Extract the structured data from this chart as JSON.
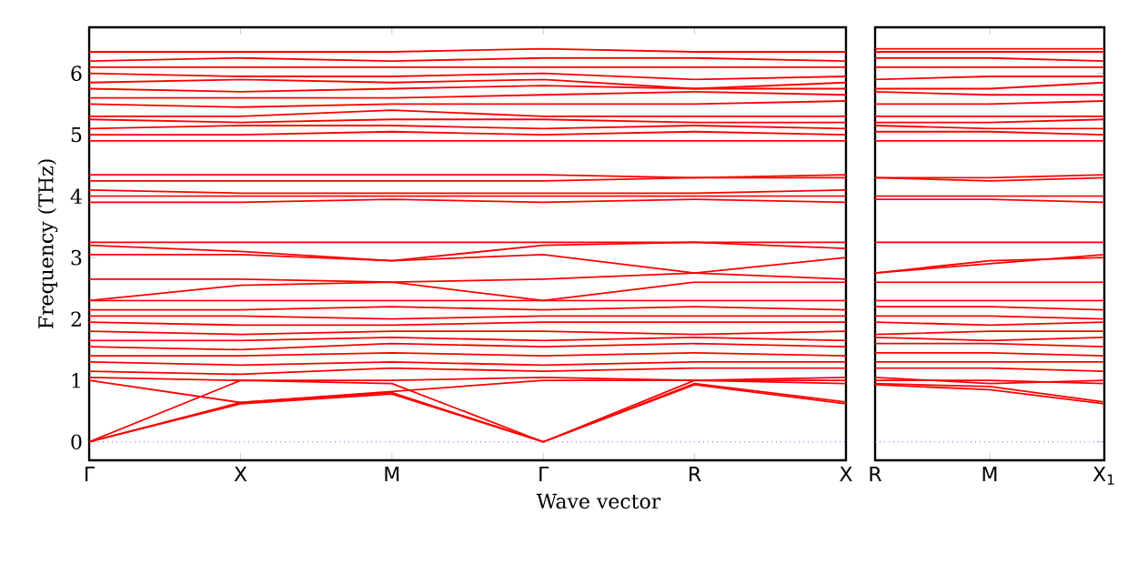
{
  "chart_data": [
    {
      "type": "line",
      "xlabel": "Wave vector",
      "ylabel": "Frequency (THz)",
      "color": "#ff0000",
      "categories": [
        "Γ",
        "X",
        "M",
        "Γ",
        "R",
        "X"
      ],
      "ylim": [
        -0.3,
        6.75
      ],
      "yticks": [
        0,
        1,
        2,
        3,
        4,
        5,
        6
      ],
      "ref_lines": [
        {
          "axis": "y",
          "value": 0,
          "color": "#6666ff",
          "line_style": "dotted"
        }
      ],
      "series": [
        {
          "values": [
            0,
            0.62,
            0.78,
            0,
            0.93,
            0.62
          ]
        },
        {
          "values": [
            0,
            0.64,
            0.8,
            0,
            0.95,
            0.65
          ]
        },
        {
          "values": [
            0,
            1.0,
            0.95,
            0,
            1.0,
            0.95
          ]
        },
        {
          "values": [
            1.0,
            0.64,
            0.82,
            1.0,
            1.0,
            1.0
          ]
        },
        {
          "values": [
            1.05,
            1.0,
            1.0,
            1.05,
            1.0,
            1.05
          ]
        },
        {
          "values": [
            1.15,
            1.1,
            1.2,
            1.15,
            1.2,
            1.2
          ]
        },
        {
          "values": [
            1.3,
            1.25,
            1.3,
            1.25,
            1.3,
            1.3
          ]
        },
        {
          "values": [
            1.4,
            1.4,
            1.45,
            1.4,
            1.45,
            1.4
          ]
        },
        {
          "values": [
            1.55,
            1.5,
            1.6,
            1.55,
            1.6,
            1.55
          ]
        },
        {
          "values": [
            1.65,
            1.65,
            1.7,
            1.65,
            1.7,
            1.65
          ]
        },
        {
          "values": [
            1.8,
            1.75,
            1.8,
            1.8,
            1.75,
            1.8
          ]
        },
        {
          "values": [
            1.95,
            1.9,
            1.9,
            1.95,
            1.95,
            1.95
          ]
        },
        {
          "values": [
            2.05,
            2.05,
            2.0,
            2.05,
            2.05,
            2.05
          ]
        },
        {
          "values": [
            2.15,
            2.15,
            2.2,
            2.15,
            2.2,
            2.15
          ]
        },
        {
          "values": [
            2.3,
            2.3,
            2.3,
            2.3,
            2.3,
            2.3
          ]
        },
        {
          "values": [
            2.3,
            2.55,
            2.6,
            2.3,
            2.6,
            2.6
          ]
        },
        {
          "values": [
            2.65,
            2.65,
            2.6,
            2.65,
            2.75,
            2.65
          ]
        },
        {
          "values": [
            3.05,
            3.05,
            2.95,
            3.05,
            2.75,
            3.0
          ]
        },
        {
          "values": [
            3.2,
            3.1,
            2.95,
            3.2,
            3.25,
            3.15
          ]
        },
        {
          "values": [
            3.25,
            3.25,
            3.25,
            3.25,
            3.25,
            3.25
          ]
        },
        {
          "values": [
            3.9,
            3.9,
            3.95,
            3.9,
            3.95,
            3.9
          ]
        },
        {
          "values": [
            4.0,
            4.0,
            4.0,
            4.0,
            4.0,
            4.0
          ]
        },
        {
          "values": [
            4.1,
            4.05,
            4.05,
            4.05,
            4.05,
            4.1
          ]
        },
        {
          "values": [
            4.25,
            4.25,
            4.25,
            4.25,
            4.3,
            4.3
          ]
        },
        {
          "values": [
            4.35,
            4.35,
            4.35,
            4.35,
            4.3,
            4.35
          ]
        },
        {
          "values": [
            4.9,
            4.9,
            4.9,
            4.9,
            4.9,
            4.9
          ]
        },
        {
          "values": [
            5.0,
            5.0,
            5.05,
            5.0,
            5.05,
            5.0
          ]
        },
        {
          "values": [
            5.1,
            5.15,
            5.15,
            5.1,
            5.15,
            5.1
          ]
        },
        {
          "values": [
            5.25,
            5.2,
            5.25,
            5.25,
            5.2,
            5.2
          ]
        },
        {
          "values": [
            5.3,
            5.3,
            5.4,
            5.3,
            5.3,
            5.3
          ]
        },
        {
          "values": [
            5.5,
            5.45,
            5.5,
            5.5,
            5.5,
            5.55
          ]
        },
        {
          "values": [
            5.6,
            5.6,
            5.6,
            5.65,
            5.7,
            5.65
          ]
        },
        {
          "values": [
            5.75,
            5.7,
            5.75,
            5.8,
            5.75,
            5.75
          ]
        },
        {
          "values": [
            5.85,
            5.9,
            5.85,
            5.9,
            5.75,
            5.85
          ]
        },
        {
          "values": [
            6.0,
            5.95,
            5.95,
            6.0,
            5.9,
            5.95
          ]
        },
        {
          "values": [
            6.1,
            6.1,
            6.1,
            6.1,
            6.1,
            6.1
          ]
        },
        {
          "values": [
            6.2,
            6.25,
            6.2,
            6.25,
            6.25,
            6.2
          ]
        },
        {
          "values": [
            6.35,
            6.35,
            6.35,
            6.4,
            6.35,
            6.35
          ]
        }
      ]
    },
    {
      "type": "line",
      "color": "#ff0000",
      "tick_labels": "x",
      "categories": [
        "R",
        "M",
        "X$_{1}$"
      ],
      "ylim": [
        -0.3,
        6.75
      ],
      "yticks": [
        0,
        1,
        2,
        3,
        4,
        5,
        6
      ],
      "ref_lines": [
        {
          "axis": "y",
          "value": 0,
          "color": "#6666ff",
          "line_style": "dotted"
        }
      ],
      "series": [
        {
          "values": [
            0.93,
            0.85,
            0.62
          ]
        },
        {
          "values": [
            0.95,
            0.9,
            0.65
          ]
        },
        {
          "values": [
            1.0,
            1.0,
            0.95
          ]
        },
        {
          "values": [
            1.05,
            0.95,
            1.0
          ]
        },
        {
          "values": [
            1.2,
            1.2,
            1.15
          ]
        },
        {
          "values": [
            1.3,
            1.3,
            1.3
          ]
        },
        {
          "values": [
            1.45,
            1.45,
            1.4
          ]
        },
        {
          "values": [
            1.6,
            1.6,
            1.55
          ]
        },
        {
          "values": [
            1.7,
            1.65,
            1.7
          ]
        },
        {
          "values": [
            1.75,
            1.8,
            1.8
          ]
        },
        {
          "values": [
            1.95,
            1.9,
            1.95
          ]
        },
        {
          "values": [
            2.05,
            2.05,
            2.0
          ]
        },
        {
          "values": [
            2.2,
            2.2,
            2.15
          ]
        },
        {
          "values": [
            2.3,
            2.3,
            2.3
          ]
        },
        {
          "values": [
            2.6,
            2.6,
            2.6
          ]
        },
        {
          "values": [
            2.75,
            2.95,
            3.0
          ]
        },
        {
          "values": [
            2.75,
            2.9,
            3.05
          ]
        },
        {
          "values": [
            3.25,
            3.25,
            3.25
          ]
        },
        {
          "values": [
            3.95,
            3.95,
            3.9
          ]
        },
        {
          "values": [
            4.0,
            4.0,
            4.0
          ]
        },
        {
          "values": [
            4.3,
            4.25,
            4.3
          ]
        },
        {
          "values": [
            4.3,
            4.3,
            4.35
          ]
        },
        {
          "values": [
            4.9,
            4.9,
            4.9
          ]
        },
        {
          "values": [
            5.05,
            5.05,
            5.0
          ]
        },
        {
          "values": [
            5.15,
            5.1,
            5.1
          ]
        },
        {
          "values": [
            5.2,
            5.2,
            5.25
          ]
        },
        {
          "values": [
            5.3,
            5.3,
            5.3
          ]
        },
        {
          "values": [
            5.5,
            5.5,
            5.55
          ]
        },
        {
          "values": [
            5.7,
            5.65,
            5.65
          ]
        },
        {
          "values": [
            5.75,
            5.75,
            5.85
          ]
        },
        {
          "values": [
            5.9,
            5.95,
            5.95
          ]
        },
        {
          "values": [
            6.25,
            6.25,
            6.2
          ]
        },
        {
          "values": [
            6.1,
            6.1,
            6.1
          ]
        },
        {
          "values": [
            6.35,
            6.35,
            6.35
          ]
        },
        {
          "values": [
            6.4,
            6.4,
            6.4
          ]
        }
      ]
    }
  ]
}
